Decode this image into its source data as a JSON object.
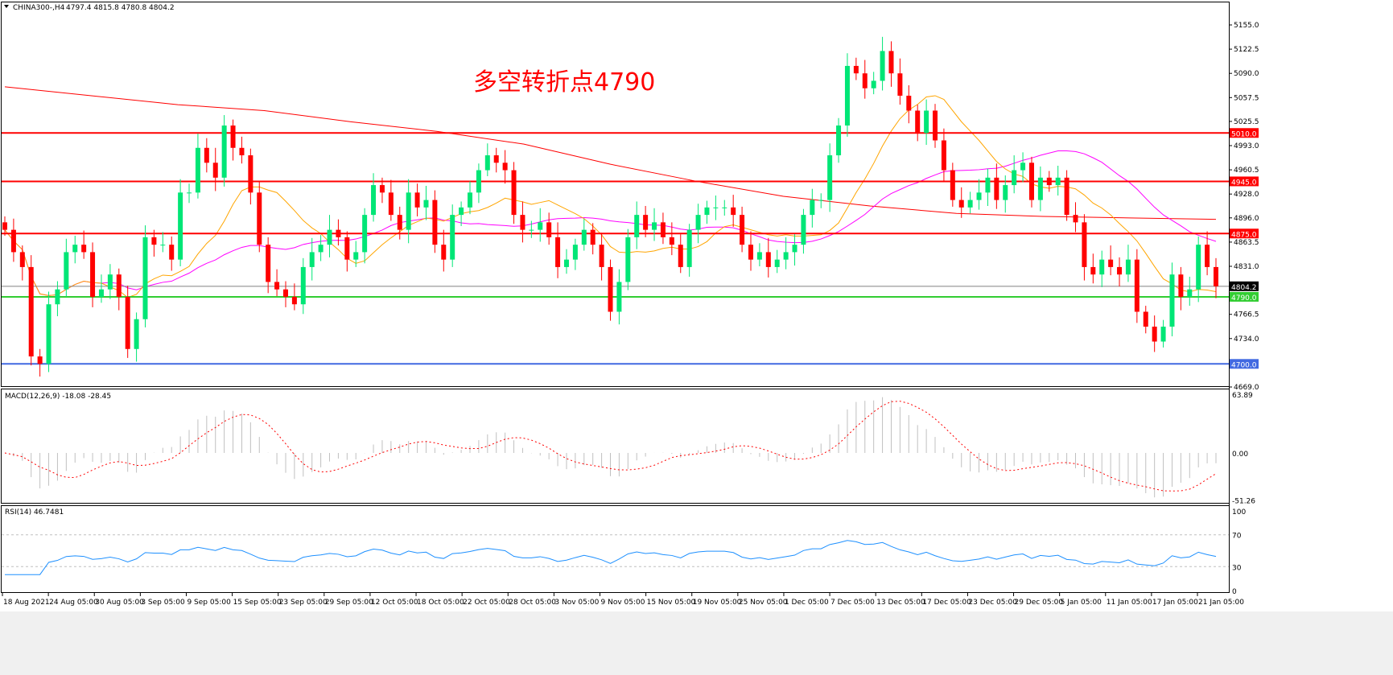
{
  "header": {
    "symbol": "CHINA300-,H4",
    "ohlc": "4797.4 4815.8 4780.8 4804.2"
  },
  "annotation": "多空转折点4790",
  "colors": {
    "bull": "#00e676",
    "bear": "#ff0000",
    "ma_fast": "#ffa500",
    "ma_mid": "#ff00ff",
    "ma_slow": "#ff0000",
    "rsi": "#1e90ff",
    "macd_hist": "#c0c0c0",
    "macd_signal": "#ff0000"
  },
  "chart_data": {
    "type": "candlestick",
    "price_axis": {
      "range": [
        4669.0,
        5155.0
      ],
      "ticks": [
        "5155.0",
        "5122.5",
        "5090.0",
        "5057.5",
        "5025.5",
        "4993.0",
        "4960.5",
        "4928.0",
        "4896.0",
        "4863.5",
        "4831.0",
        "4766.5",
        "4734.0",
        "4669.0"
      ]
    },
    "levels": [
      {
        "price": 5010.0,
        "label": "5010.0",
        "color": "#ff0000"
      },
      {
        "price": 4945.0,
        "label": "4945.0",
        "color": "#ff0000"
      },
      {
        "price": 4875.0,
        "label": "4875.0",
        "color": "#ff0000"
      },
      {
        "price": 4790.0,
        "label": "4790.0",
        "color": "#32cd32"
      },
      {
        "price": 4700.0,
        "label": "4700.0",
        "color": "#4169e1"
      }
    ],
    "current_price": {
      "price": 4804.2,
      "label": "4804.2"
    },
    "closes": [
      4880,
      4850,
      4830,
      4710,
      4700,
      4780,
      4800,
      4850,
      4860,
      4850,
      4790,
      4800,
      4820,
      4790,
      4720,
      4760,
      4870,
      4860,
      4860,
      4840,
      4930,
      4930,
      4990,
      4970,
      4950,
      5020,
      4990,
      4980,
      4930,
      4860,
      4810,
      4800,
      4790,
      4780,
      4830,
      4850,
      4860,
      4880,
      4870,
      4840,
      4850,
      4900,
      4940,
      4930,
      4900,
      4880,
      4930,
      4910,
      4920,
      4860,
      4840,
      4900,
      4910,
      4930,
      4960,
      4980,
      4970,
      4960,
      4900,
      4880,
      4880,
      4890,
      4870,
      4830,
      4840,
      4860,
      4880,
      4860,
      4830,
      4770,
      4810,
      4870,
      4900,
      4880,
      4890,
      4870,
      4860,
      4830,
      4880,
      4900,
      4910,
      4910,
      4910,
      4900,
      4860,
      4840,
      4850,
      4830,
      4840,
      4850,
      4860,
      4900,
      4920,
      4920,
      4980,
      5020,
      5100,
      5090,
      5070,
      5080,
      5120,
      5090,
      5060,
      5040,
      5010,
      5040,
      5000,
      4960,
      4920,
      4910,
      4920,
      4930,
      4950,
      4920,
      4940,
      4960,
      4970,
      4920,
      4950,
      4940,
      4950,
      4900,
      4890,
      4830,
      4820,
      4840,
      4830,
      4820,
      4840,
      4770,
      4750,
      4730,
      4750,
      4820,
      4790,
      4800,
      4860,
      4830,
      4804.2
    ],
    "ma_slow": [
      5072,
      5060,
      5048,
      5040,
      5025,
      5012,
      4995,
      4968,
      4945,
      4925,
      4912,
      4902,
      4898,
      4896,
      4894
    ],
    "macd": {
      "label": "MACD(12,26,9) -18.08 -28.45",
      "range": [
        -51.26,
        63.89
      ],
      "ticks": [
        "63.89",
        "0.00",
        "-51.26"
      ]
    },
    "rsi": {
      "label": "RSI(14) 46.7481",
      "range": [
        0,
        100
      ],
      "levels": [
        70,
        30
      ],
      "ticks": [
        "100",
        "70",
        "30",
        "0"
      ]
    },
    "time_labels": [
      "18 Aug 2021",
      "24 Aug 05:00",
      "30 Aug 05:00",
      "3 Sep 05:00",
      "9 Sep 05:00",
      "15 Sep 05:00",
      "23 Sep 05:00",
      "29 Sep 05:00",
      "12 Oct 05:00",
      "18 Oct 05:00",
      "22 Oct 05:00",
      "28 Oct 05:00",
      "3 Nov 05:00",
      "9 Nov 05:00",
      "15 Nov 05:00",
      "19 Nov 05:00",
      "25 Nov 05:00",
      "1 Dec 05:00",
      "7 Dec 05:00",
      "13 Dec 05:00",
      "17 Dec 05:00",
      "23 Dec 05:00",
      "29 Dec 05:00",
      "5 Jan 05:00",
      "11 Jan 05:00",
      "17 Jan 05:00",
      "21 Jan 05:00"
    ]
  }
}
